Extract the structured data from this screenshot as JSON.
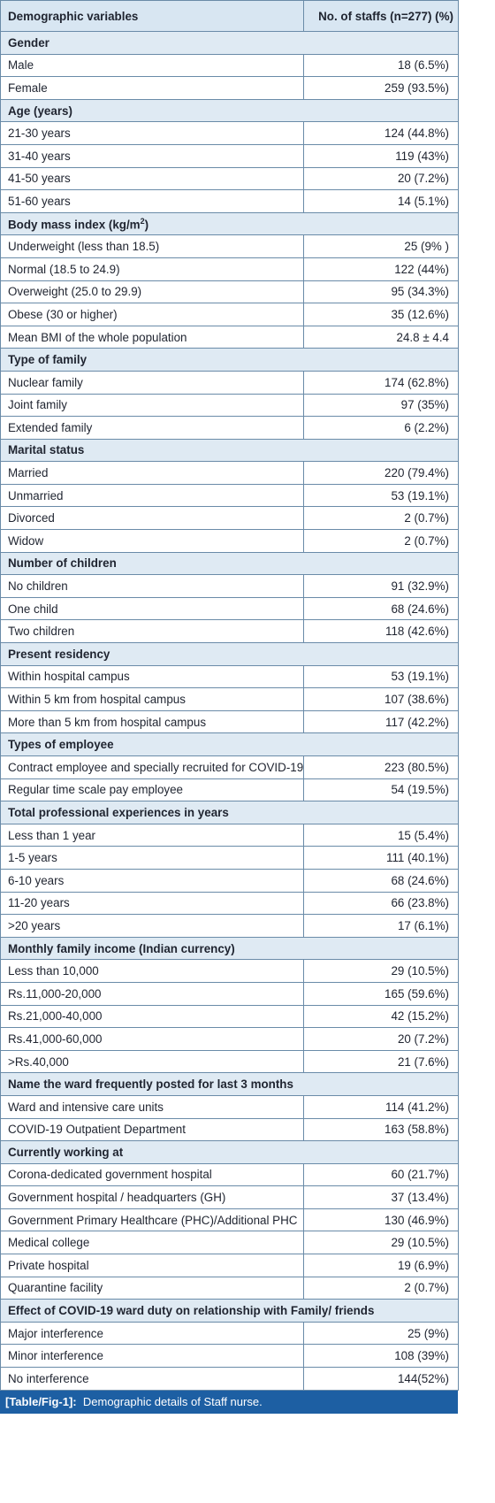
{
  "table": {
    "headers": [
      "Demographic variables",
      "No. of staffs (n=277) (%)"
    ],
    "sections": [
      {
        "title": "Gender",
        "rows": [
          [
            "Male",
            "18 (6.5%)"
          ],
          [
            "Female",
            "259 (93.5%)"
          ]
        ]
      },
      {
        "title": "Age (years)",
        "rows": [
          [
            "21-30 years",
            "124 (44.8%)"
          ],
          [
            "31-40 years",
            "119 (43%)"
          ],
          [
            "41-50 years",
            "20 (7.2%)"
          ],
          [
            "51-60 years",
            "14 (5.1%)"
          ]
        ]
      },
      {
        "title": "Body mass index (kg/m",
        "title_sup": "2",
        "title_end": ")",
        "rows": [
          [
            "Underweight (less than 18.5)",
            "25 (9% )"
          ],
          [
            "Normal (18.5 to 24.9)",
            "122 (44%)"
          ],
          [
            "Overweight (25.0 to 29.9)",
            "95 (34.3%)"
          ],
          [
            "Obese (30 or higher)",
            "35 (12.6%)"
          ],
          [
            "Mean BMI of the whole population",
            "24.8 ± 4.4"
          ]
        ]
      },
      {
        "title": "Type of family",
        "rows": [
          [
            "Nuclear family",
            "174 (62.8%)"
          ],
          [
            "Joint family",
            "97 (35%)"
          ],
          [
            "Extended family",
            "6 (2.2%)"
          ]
        ]
      },
      {
        "title": "Marital status",
        "rows": [
          [
            "Married",
            "220 (79.4%)"
          ],
          [
            "Unmarried",
            "53 (19.1%)"
          ],
          [
            "Divorced",
            "2 (0.7%)"
          ],
          [
            "Widow",
            "2 (0.7%)"
          ]
        ]
      },
      {
        "title": "Number of children",
        "rows": [
          [
            "No children",
            "91 (32.9%)"
          ],
          [
            "One child",
            "68 (24.6%)"
          ],
          [
            "Two children",
            "118 (42.6%)"
          ]
        ]
      },
      {
        "title": "Present residency",
        "rows": [
          [
            "Within hospital campus",
            "53 (19.1%)"
          ],
          [
            "Within 5 km from hospital campus",
            "107 (38.6%)"
          ],
          [
            "More than 5 km from hospital campus",
            "117 (42.2%)"
          ]
        ]
      },
      {
        "title": "Types of employee",
        "rows": [
          [
            "Contract employee and specially recruited for COVID-19",
            "223 (80.5%)"
          ],
          [
            "Regular time scale pay employee",
            "54 (19.5%)"
          ]
        ]
      },
      {
        "title": "Total professional experiences in years",
        "rows": [
          [
            "Less than 1 year",
            "15 (5.4%)"
          ],
          [
            "1-5 years",
            "111 (40.1%)"
          ],
          [
            "6-10 years",
            "68 (24.6%)"
          ],
          [
            "11-20 years",
            "66 (23.8%)"
          ],
          [
            ">20 years",
            "17 (6.1%)"
          ]
        ]
      },
      {
        "title": "Monthly family income (Indian currency)",
        "rows": [
          [
            "Less than 10,000",
            "29 (10.5%)"
          ],
          [
            "Rs.11,000-20,000",
            "165 (59.6%)"
          ],
          [
            "Rs.21,000-40,000",
            "42 (15.2%)"
          ],
          [
            "Rs.41,000-60,000",
            "20 (7.2%)"
          ],
          [
            ">Rs.40,000",
            "21 (7.6%)"
          ]
        ]
      },
      {
        "title": "Name the ward frequently posted for last 3 months",
        "rows": [
          [
            "Ward and intensive care units",
            "114 (41.2%)"
          ],
          [
            "COVID-19 Outpatient Department",
            "163 (58.8%)"
          ]
        ]
      },
      {
        "title": "Currently working at",
        "rows": [
          [
            "Corona-dedicated government hospital",
            "60 (21.7%)"
          ],
          [
            "Government hospital / headquarters (GH)",
            "37 (13.4%)"
          ],
          [
            "Government Primary Healthcare (PHC)/Additional PHC",
            "130 (46.9%)"
          ],
          [
            "Medical college",
            "29 (10.5%)"
          ],
          [
            "Private hospital",
            "19 (6.9%)"
          ],
          [
            "Quarantine facility",
            "2 (0.7%)"
          ]
        ]
      },
      {
        "title": "Effect of COVID-19 ward duty on relationship with Family/ friends",
        "rows": [
          [
            "Major interference",
            "25 (9%)"
          ],
          [
            "Minor interference",
            "108 (39%)"
          ],
          [
            "No interference",
            "144(52%)"
          ]
        ]
      }
    ]
  },
  "caption": {
    "label": "[Table/Fig-1]:",
    "text": "Demographic details of Staff nurse."
  }
}
